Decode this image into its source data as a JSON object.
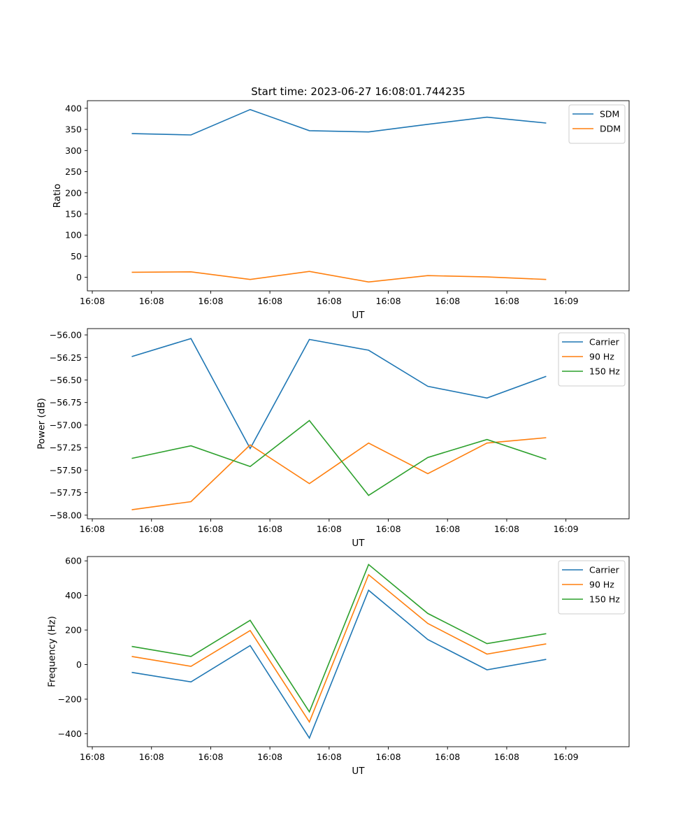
{
  "figure_title": "Start time: 2023-06-27 16:08:01.744235",
  "colors": {
    "blue": "#1f77b4",
    "orange": "#ff7f0e",
    "green": "#2ca02c"
  },
  "chart_data": [
    {
      "type": "line",
      "title": "Start time: 2023-06-27 16:08:01.744235",
      "xlabel": "UT",
      "ylabel": "Ratio",
      "x": [
        1,
        2,
        3,
        4,
        5,
        6,
        7,
        8
      ],
      "x_tick_labels": [
        "16:08",
        "16:08",
        "16:08",
        "16:08",
        "16:08",
        "16:08",
        "16:08",
        "16:09"
      ],
      "xlim": [
        0.25,
        9.4
      ],
      "ylim": [
        -32,
        418
      ],
      "y_ticks": [
        0,
        50,
        100,
        150,
        200,
        250,
        300,
        350,
        400
      ],
      "legend_position": "top-right",
      "series": [
        {
          "name": "SDM",
          "color": "#1f77b4",
          "values": [
            340,
            337,
            397,
            347,
            344,
            362,
            379,
            365
          ]
        },
        {
          "name": "DDM",
          "color": "#ff7f0e",
          "values": [
            12,
            13,
            -5,
            14,
            -11,
            4,
            1,
            -5
          ]
        }
      ]
    },
    {
      "type": "line",
      "xlabel": "UT",
      "ylabel": "Power (dB)",
      "x": [
        1,
        2,
        3,
        4,
        5,
        6,
        7,
        8
      ],
      "x_tick_labels": [
        "16:08",
        "16:08",
        "16:08",
        "16:08",
        "16:08",
        "16:08",
        "16:08",
        "16:09"
      ],
      "xlim": [
        0.25,
        9.4
      ],
      "ylim": [
        -58.04,
        -55.93
      ],
      "y_ticks": [
        -58.0,
        -57.75,
        -57.5,
        -57.25,
        -57.0,
        -56.75,
        -56.5,
        -56.25,
        -56.0
      ],
      "y_tick_labels": [
        "−58.00",
        "−57.75",
        "−57.50",
        "−57.25",
        "−57.00",
        "−56.75",
        "−56.50",
        "−56.25",
        "−56.00"
      ],
      "legend_position": "top-right",
      "series": [
        {
          "name": "Carrier",
          "color": "#1f77b4",
          "values": [
            -56.24,
            -56.04,
            -57.26,
            -56.05,
            -56.17,
            -56.57,
            -56.7,
            -56.46
          ]
        },
        {
          "name": "90 Hz",
          "color": "#ff7f0e",
          "values": [
            -57.94,
            -57.85,
            -57.22,
            -57.65,
            -57.2,
            -57.54,
            -57.2,
            -57.14
          ]
        },
        {
          "name": "150 Hz",
          "color": "#2ca02c",
          "values": [
            -57.37,
            -57.23,
            -57.46,
            -56.95,
            -57.78,
            -57.36,
            -57.16,
            -57.38
          ]
        }
      ]
    },
    {
      "type": "line",
      "xlabel": "UT",
      "ylabel": "Frequency (Hz)",
      "x": [
        1,
        2,
        3,
        4,
        5,
        6,
        7,
        8
      ],
      "x_tick_labels": [
        "16:08",
        "16:08",
        "16:08",
        "16:08",
        "16:08",
        "16:08",
        "16:08",
        "16:09"
      ],
      "xlim": [
        0.25,
        9.4
      ],
      "ylim": [
        -475,
        625
      ],
      "y_ticks": [
        -400,
        -200,
        0,
        200,
        400,
        600
      ],
      "y_tick_labels": [
        "−400",
        "−200",
        "0",
        "200",
        "400",
        "600"
      ],
      "legend_position": "top-right",
      "series": [
        {
          "name": "Carrier",
          "color": "#1f77b4",
          "values": [
            -45,
            -100,
            110,
            -425,
            430,
            145,
            -30,
            30
          ]
        },
        {
          "name": "90 Hz",
          "color": "#ff7f0e",
          "values": [
            47,
            -10,
            197,
            -332,
            520,
            238,
            61,
            120
          ]
        },
        {
          "name": "150 Hz",
          "color": "#2ca02c",
          "values": [
            105,
            47,
            256,
            -273,
            579,
            296,
            121,
            179
          ]
        }
      ]
    }
  ]
}
